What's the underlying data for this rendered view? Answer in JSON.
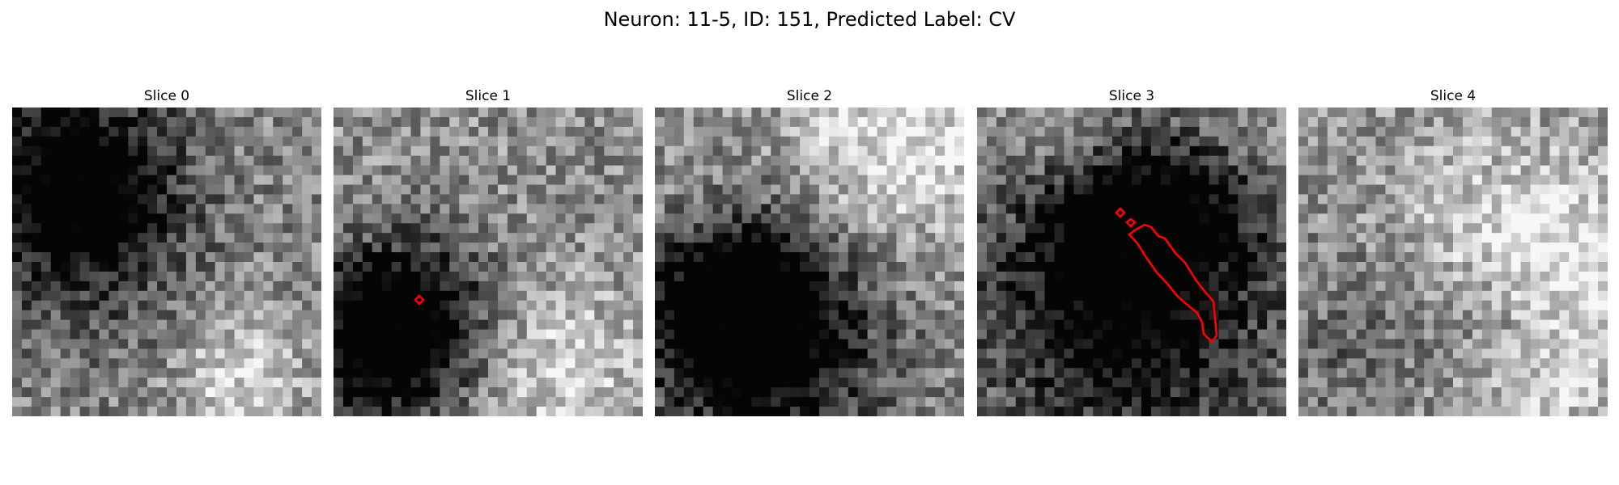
{
  "figure": {
    "title": "Neuron: 11-5, ID: 151, Predicted Label: CV"
  },
  "panels": [
    {
      "title": "Slice 0",
      "seed": 11,
      "has_contour": false
    },
    {
      "title": "Slice 1",
      "seed": 23,
      "has_contour": true
    },
    {
      "title": "Slice 2",
      "seed": 37,
      "has_contour": false
    },
    {
      "title": "Slice 3",
      "seed": 53,
      "has_contour": true
    },
    {
      "title": "Slice 4",
      "seed": 71,
      "has_contour": false
    }
  ],
  "colors": {
    "contour": "#ff0000",
    "dark": "#000000",
    "light": "#ffffff"
  }
}
